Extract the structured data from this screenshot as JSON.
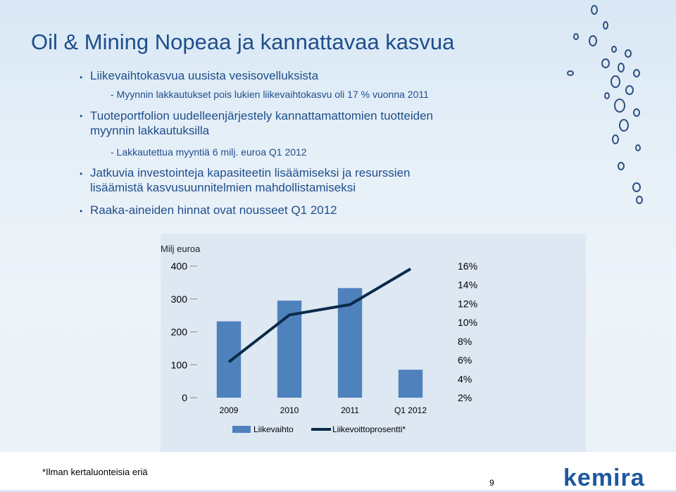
{
  "title": "Oil & Mining  Nopeaa ja kannattavaa kasvua",
  "bullets": [
    {
      "text": "Liikevaihtokasvua uusista vesisovelluksista"
    },
    {
      "sub": "- Myynnin lakkautukset pois lukien liikevaihtokasvu oli 17 % vuonna 2011"
    },
    {
      "text": "Tuoteportfolion uudelleenjärjestely kannattamattomien tuotteiden myynnin lakkautuksilla"
    },
    {
      "sub": "- Lakkautettua myyntiä 6 milj. euroa Q1 2012"
    },
    {
      "text": "Jatkuvia investointeja kapasiteetin lisäämiseksi ja resurssien lisäämistä kasvusuunnitelmien mahdollistamiseksi"
    },
    {
      "text": "Raaka-aineiden hinnat ovat nousseet Q1 2012"
    }
  ],
  "chart_data": {
    "type": "bar",
    "ylabel": "Milj euroa",
    "categories": [
      "2009",
      "2010",
      "2011",
      "Q1 2012"
    ],
    "ylim": [
      0,
      400
    ],
    "yticks": [
      0,
      100,
      200,
      300,
      400
    ],
    "y2lim": [
      2,
      16
    ],
    "y2ticks": [
      "16%",
      "14%",
      "12%",
      "10%",
      "8%",
      "6%",
      "4%",
      "2%"
    ],
    "series": [
      {
        "name": "Liikevaihto",
        "kind": "bar",
        "color": "#4f81bd",
        "values": [
          232,
          295,
          333,
          85
        ]
      },
      {
        "name": "Liikevoittoprosentti*",
        "kind": "line",
        "color": "#0b2a4a",
        "axis": "right",
        "values": [
          5.8,
          10.8,
          11.9,
          15.7
        ]
      }
    ],
    "legend": "bottom"
  },
  "footnote": "*Ilman kertaluonteisia eriä",
  "page_number": "9",
  "logo": "kemira",
  "colors": {
    "accent": "#1f4e8c",
    "bar": "#4f81bd",
    "line": "#0b2a4a"
  }
}
